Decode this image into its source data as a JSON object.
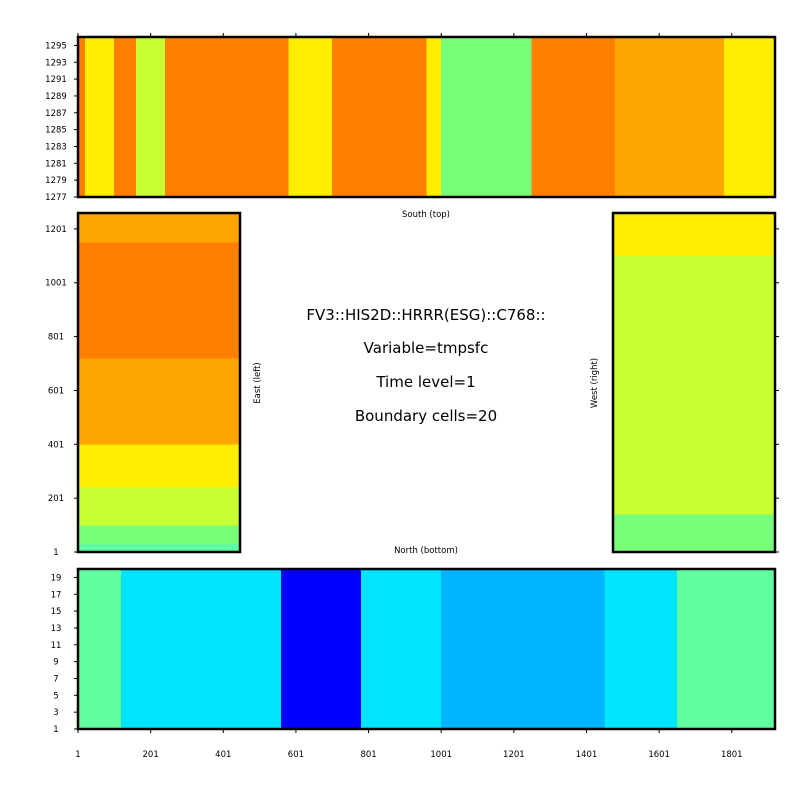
{
  "colors": {
    "orange": "#ff7f00",
    "amber": "#ffa500",
    "yellow": "#ffee00",
    "yellowgreen": "#c8ff32",
    "lightgreen": "#78ff7a",
    "aquagreen": "#5fffa0",
    "cyan": "#00e5ff",
    "skyblue": "#00b4ff",
    "blue": "#0000ff",
    "frame": "#000000"
  },
  "info": {
    "line1": "FV3::HIS2D::HRRR(ESG)::C768::",
    "line2": "Variable=tmpsfc",
    "line3": "Time level=1",
    "line4": "Boundary cells=20"
  },
  "labels": {
    "south": "South (top)",
    "north": "North (bottom)",
    "east": "East (left)",
    "west": "West (right)"
  },
  "chart_data": [
    {
      "type": "heatmap",
      "panel": "south",
      "variable": "tmpsfc",
      "x_ticks": [],
      "y_ticks": [
        "1277",
        "1279",
        "1281",
        "1283",
        "1285",
        "1287",
        "1289",
        "1291",
        "1293",
        "1295"
      ],
      "xlim": [
        1,
        1920
      ],
      "ylim": [
        1277,
        1296
      ],
      "x_bands": [
        {
          "from": 1,
          "to": 20,
          "color": "orange"
        },
        {
          "from": 20,
          "to": 100,
          "color": "yellow"
        },
        {
          "from": 100,
          "to": 160,
          "color": "orange"
        },
        {
          "from": 160,
          "to": 240,
          "color": "yellowgreen"
        },
        {
          "from": 240,
          "to": 580,
          "color": "orange"
        },
        {
          "from": 580,
          "to": 700,
          "color": "yellow"
        },
        {
          "from": 700,
          "to": 960,
          "color": "orange"
        },
        {
          "from": 960,
          "to": 1000,
          "color": "yellow"
        },
        {
          "from": 1000,
          "to": 1250,
          "color": "lightgreen"
        },
        {
          "from": 1250,
          "to": 1480,
          "color": "orange"
        },
        {
          "from": 1480,
          "to": 1780,
          "color": "amber"
        },
        {
          "from": 1780,
          "to": 1920,
          "color": "yellow"
        }
      ]
    },
    {
      "type": "heatmap",
      "panel": "east",
      "variable": "tmpsfc",
      "y_ticks": [
        "1",
        "201",
        "401",
        "601",
        "801",
        "1001",
        "1201"
      ],
      "ylim": [
        1,
        1260
      ],
      "xlim": [
        1,
        20
      ],
      "y_bands": [
        {
          "from": 1,
          "to": 30,
          "color": "aquagreen"
        },
        {
          "from": 30,
          "to": 100,
          "color": "lightgreen"
        },
        {
          "from": 100,
          "to": 240,
          "color": "yellowgreen"
        },
        {
          "from": 240,
          "to": 400,
          "color": "yellow"
        },
        {
          "from": 400,
          "to": 720,
          "color": "amber"
        },
        {
          "from": 720,
          "to": 1150,
          "color": "orange"
        },
        {
          "from": 1150,
          "to": 1260,
          "color": "amber"
        }
      ]
    },
    {
      "type": "heatmap",
      "panel": "west",
      "variable": "tmpsfc",
      "y_ticks": [],
      "ylim": [
        1,
        1260
      ],
      "xlim": [
        1,
        20
      ],
      "y_bands": [
        {
          "from": 1,
          "to": 140,
          "color": "lightgreen"
        },
        {
          "from": 140,
          "to": 900,
          "color": "yellowgreen"
        },
        {
          "from": 900,
          "to": 1100,
          "color": "yellowgreen"
        },
        {
          "from": 1100,
          "to": 1260,
          "color": "yellow"
        }
      ]
    },
    {
      "type": "heatmap",
      "panel": "north",
      "variable": "tmpsfc",
      "x_ticks": [
        "1",
        "201",
        "401",
        "601",
        "801",
        "1001",
        "1201",
        "1401",
        "1601",
        "1801"
      ],
      "y_ticks": [
        "1",
        "3",
        "5",
        "7",
        "9",
        "11",
        "13",
        "15",
        "17",
        "19"
      ],
      "xlim": [
        1,
        1920
      ],
      "ylim": [
        1,
        20
      ],
      "x_bands": [
        {
          "from": 1,
          "to": 120,
          "color": "aquagreen"
        },
        {
          "from": 120,
          "to": 560,
          "color": "cyan"
        },
        {
          "from": 560,
          "to": 780,
          "color": "blue"
        },
        {
          "from": 780,
          "to": 1000,
          "color": "cyan"
        },
        {
          "from": 1000,
          "to": 1450,
          "color": "skyblue"
        },
        {
          "from": 1450,
          "to": 1650,
          "color": "cyan"
        },
        {
          "from": 1650,
          "to": 1920,
          "color": "aquagreen"
        }
      ]
    }
  ]
}
